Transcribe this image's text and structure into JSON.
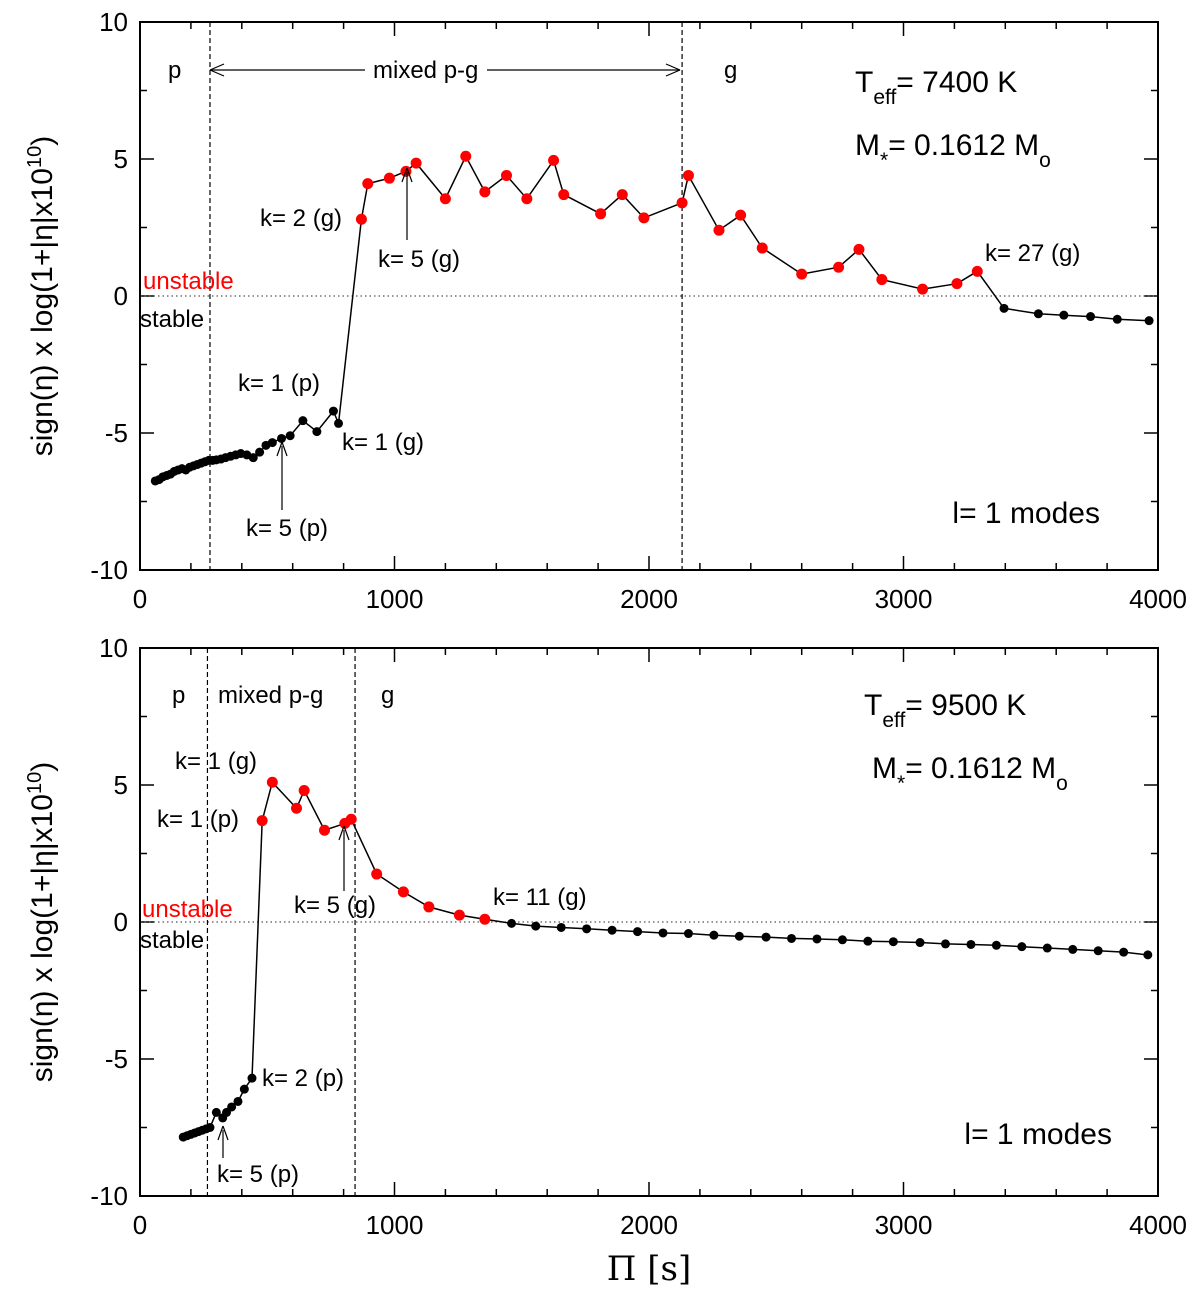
{
  "colors": {
    "unstable": "#ff0000",
    "stable": "#000000",
    "line": "#000000"
  },
  "chart_data": [
    {
      "type": "line",
      "xlim": [
        0,
        4000
      ],
      "ylim": [
        -10,
        10
      ],
      "xticks": [
        "0",
        "1000",
        "2000",
        "3000",
        "4000"
      ],
      "yticks": [
        "-10",
        "-5",
        "0",
        "5",
        "10"
      ],
      "ylabel_parts": {
        "pre": "sign(",
        "eta1": "η",
        "mid": ") x log(1+|",
        "eta2": "η",
        "post": "|x10",
        "sup": "10",
        "close": ")"
      },
      "temp": {
        "pre": "T",
        "sub": "eff",
        "post": "= 7400 K"
      },
      "mass": {
        "pre": "M",
        "sub": "*",
        "mid": "= 0.1612 M",
        "sub2": "o"
      },
      "modes_label": "l= 1 modes",
      "unstable_label": "unstable",
      "stable_label": "stable",
      "region_labels": {
        "p": "p",
        "mixed": "mixed p-g",
        "g": "g"
      },
      "boundaries": [
        275,
        2130
      ],
      "annotations": [
        {
          "text": "k= 2 (g)"
        },
        {
          "text": "k= 5 (g)"
        },
        {
          "text": "k= 27 (g)"
        },
        {
          "text": "k= 1 (p)"
        },
        {
          "text": "k= 1 (g)"
        },
        {
          "text": "k= 5 (p)"
        }
      ],
      "series": [
        {
          "name": "modes",
          "x": [
            60,
            75,
            90,
            105,
            120,
            135,
            150,
            165,
            180,
            195,
            210,
            225,
            240,
            255,
            270,
            285,
            300,
            318,
            336,
            356,
            376,
            396,
            420,
            445,
            470,
            495,
            520,
            556,
            590,
            640,
            695,
            760,
            780,
            870,
            895,
            980,
            1045,
            1085,
            1200,
            1280,
            1355,
            1440,
            1520,
            1625,
            1665,
            1810,
            1895,
            1980,
            2130,
            2155,
            2275,
            2360,
            2445,
            2600,
            2745,
            2825,
            2915,
            3075,
            3210,
            3290,
            3395,
            3530,
            3630,
            3735,
            3840,
            3965
          ],
          "y": [
            -6.75,
            -6.7,
            -6.6,
            -6.55,
            -6.5,
            -6.4,
            -6.35,
            -6.3,
            -6.35,
            -6.25,
            -6.2,
            -6.15,
            -6.1,
            -6.05,
            -6.0,
            -6.0,
            -5.98,
            -5.95,
            -5.9,
            -5.85,
            -5.8,
            -5.75,
            -5.8,
            -5.9,
            -5.7,
            -5.45,
            -5.35,
            -5.2,
            -5.1,
            -4.55,
            -4.95,
            -4.2,
            -4.65,
            2.8,
            4.1,
            4.3,
            4.55,
            4.85,
            3.55,
            5.1,
            3.8,
            4.4,
            3.55,
            4.95,
            3.7,
            3.0,
            3.7,
            2.85,
            3.4,
            4.4,
            2.4,
            2.95,
            1.75,
            0.8,
            1.05,
            1.7,
            0.6,
            0.25,
            0.45,
            0.9,
            -0.45,
            -0.65,
            -0.7,
            -0.75,
            -0.85,
            -0.9
          ]
        }
      ]
    },
    {
      "type": "line",
      "xlim": [
        0,
        4000
      ],
      "ylim": [
        -10,
        10
      ],
      "xticks": [
        "0",
        "1000",
        "2000",
        "3000",
        "4000"
      ],
      "yticks": [
        "-10",
        "-5",
        "0",
        "5",
        "10"
      ],
      "ylabel_parts": {
        "pre": "sign(",
        "eta1": "η",
        "mid": ") x log(1+|",
        "eta2": "η",
        "post": "|x10",
        "sup": "10",
        "close": ")"
      },
      "xlabel": {
        "pi": "Π",
        "unit": " [s]"
      },
      "temp": {
        "pre": "T",
        "sub": "eff",
        "post": "= 9500 K"
      },
      "mass": {
        "pre": "M",
        "sub": "*",
        "mid": "= 0.1612 M",
        "sub2": "o"
      },
      "modes_label": "l= 1 modes",
      "unstable_label": "unstable",
      "stable_label": "stable",
      "region_labels": {
        "p": "p",
        "mixed": "mixed p-g",
        "g": "g"
      },
      "boundaries": [
        265,
        845
      ],
      "annotations": [
        {
          "text": "k= 1 (g)"
        },
        {
          "text": "k= 1 (p)"
        },
        {
          "text": "k= 5 (g)"
        },
        {
          "text": "k= 11 (g)"
        },
        {
          "text": "k= 2 (p)"
        },
        {
          "text": "k= 5 (p)"
        }
      ],
      "series": [
        {
          "name": "modes",
          "x": [
            170,
            185,
            200,
            215,
            230,
            245,
            260,
            275,
            300,
            325,
            340,
            360,
            385,
            410,
            440,
            480,
            520,
            615,
            645,
            725,
            805,
            830,
            930,
            1035,
            1135,
            1255,
            1355,
            1460,
            1555,
            1655,
            1755,
            1855,
            1955,
            2055,
            2155,
            2255,
            2355,
            2460,
            2560,
            2660,
            2760,
            2860,
            2960,
            3065,
            3165,
            3265,
            3365,
            3465,
            3565,
            3665,
            3765,
            3865,
            3960
          ],
          "y": [
            -7.85,
            -7.8,
            -7.75,
            -7.7,
            -7.65,
            -7.6,
            -7.55,
            -7.5,
            -6.95,
            -7.15,
            -6.95,
            -6.75,
            -6.55,
            -6.1,
            -5.7,
            3.7,
            5.1,
            4.15,
            4.8,
            3.35,
            3.6,
            3.75,
            1.75,
            1.1,
            0.55,
            0.25,
            0.1,
            -0.05,
            -0.15,
            -0.2,
            -0.25,
            -0.3,
            -0.35,
            -0.4,
            -0.42,
            -0.48,
            -0.52,
            -0.55,
            -0.6,
            -0.62,
            -0.65,
            -0.7,
            -0.72,
            -0.75,
            -0.8,
            -0.82,
            -0.85,
            -0.9,
            -0.95,
            -1.0,
            -1.05,
            -1.1,
            -1.2
          ]
        }
      ]
    }
  ]
}
